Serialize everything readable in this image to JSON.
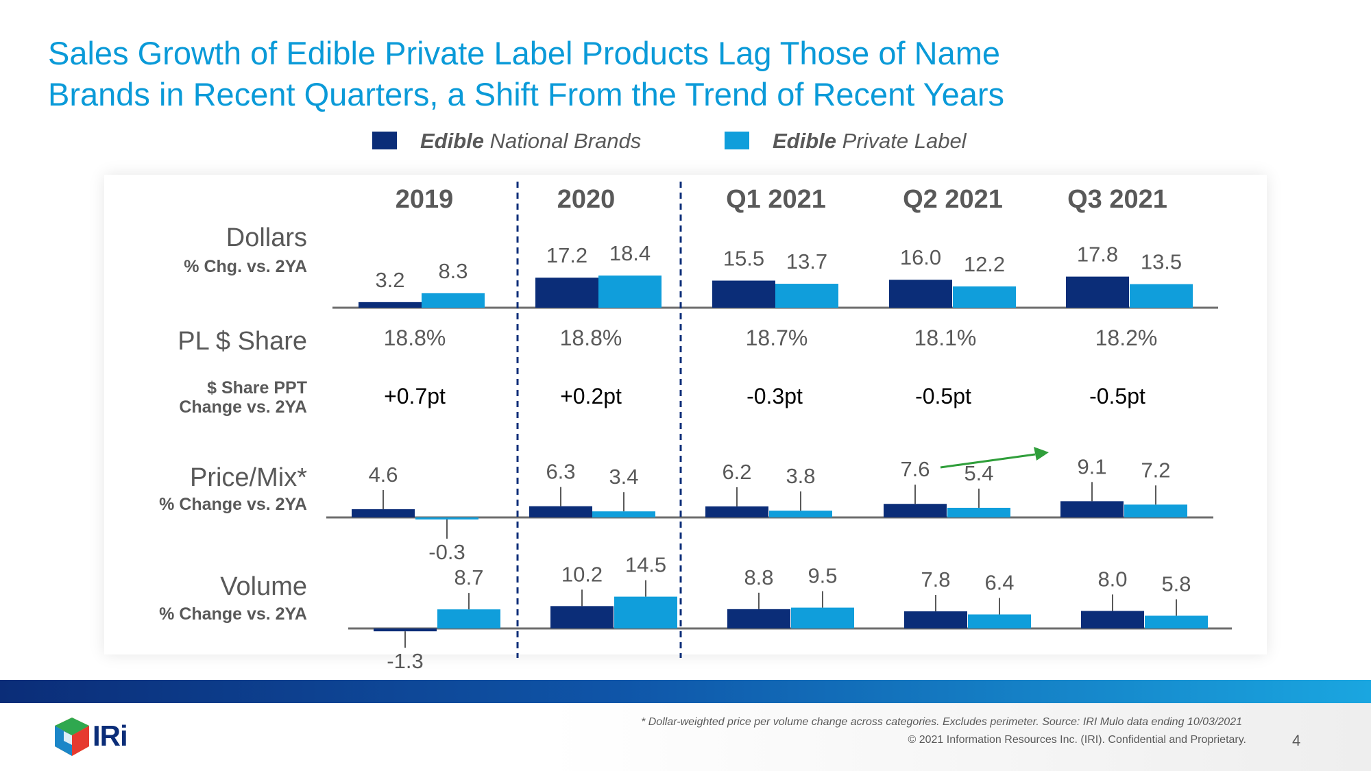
{
  "title_line1": "Sales Growth of Edible Private Label Products Lag Those of Name",
  "title_line2": "Brands in Recent Quarters, a Shift From the Trend of Recent Years",
  "legend": {
    "national": {
      "bold": "Edible",
      "rest": " National Brands",
      "color": "#0b2d78"
    },
    "private": {
      "bold": "Edible",
      "rest": " Private Label",
      "color": "#109edb"
    }
  },
  "row_labels": {
    "dollars": "Dollars",
    "dollars_sub": "% Chg. vs. 2YA",
    "pl_share": "PL $ Share",
    "ppt_line1": "$ Share PPT",
    "ppt_line2": "Change vs. 2YA",
    "price": "Price/Mix*",
    "price_sub": "% Change vs. 2YA",
    "volume": "Volume",
    "volume_sub": "% Change vs. 2YA"
  },
  "periods": [
    "2019",
    "2020",
    "Q1 2021",
    "Q2  2021",
    "Q3 2021"
  ],
  "pl_share": [
    "18.8%",
    "18.8%",
    "18.7%",
    "18.1%",
    "18.2%"
  ],
  "ppt_change": [
    "+0.7pt",
    "+0.2pt",
    "-0.3pt",
    "-0.5pt",
    "-0.5pt"
  ],
  "chart_data": [
    {
      "type": "bar",
      "title": "Dollars % Chg. vs. 2YA",
      "categories": [
        "2019",
        "2020",
        "Q1 2021",
        "Q2  2021",
        "Q3 2021"
      ],
      "series": [
        {
          "name": "Edible National Brands",
          "values": [
            3.2,
            17.2,
            15.5,
            16.0,
            17.8
          ]
        },
        {
          "name": "Edible Private Label",
          "values": [
            8.3,
            18.4,
            13.7,
            12.2,
            13.5
          ]
        }
      ]
    },
    {
      "type": "bar",
      "title": "Price/Mix* % Change vs. 2YA",
      "categories": [
        "2019",
        "2020",
        "Q1 2021",
        "Q2  2021",
        "Q3 2021"
      ],
      "series": [
        {
          "name": "Edible National Brands",
          "values": [
            4.6,
            6.3,
            6.2,
            7.6,
            9.1
          ]
        },
        {
          "name": "Edible Private Label",
          "values": [
            -0.3,
            3.4,
            3.8,
            5.4,
            7.2
          ]
        }
      ]
    },
    {
      "type": "bar",
      "title": "Volume % Change vs. 2YA",
      "categories": [
        "2019",
        "2020",
        "Q1 2021",
        "Q2  2021",
        "Q3 2021"
      ],
      "series": [
        {
          "name": "Edible National Brands",
          "values": [
            -1.3,
            10.2,
            8.8,
            7.8,
            8.0
          ]
        },
        {
          "name": "Edible Private Label",
          "values": [
            8.7,
            14.5,
            9.5,
            6.4,
            5.8
          ]
        }
      ]
    }
  ],
  "footnote": "* Dollar-weighted price per volume change across categories. Excludes perimeter. Source: IRI Mulo data ending 10/03/2021",
  "copyright": "© 2021 Information Resources Inc. (IRI). Confidential and Proprietary.",
  "page_number": "4",
  "logo_text": "IRi"
}
